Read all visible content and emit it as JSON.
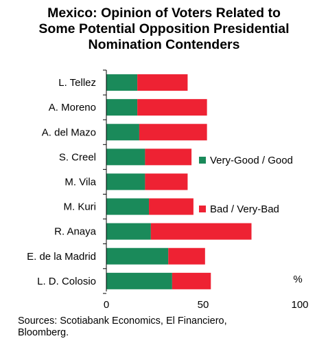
{
  "title_lines": [
    "Mexico: Opinion of Voters Related to",
    "Some Potential Opposition Presidential",
    "Nomination Contenders"
  ],
  "source_lines": [
    "Sources: Scotiabank Economics, El Financiero,",
    "Bloomberg."
  ],
  "chart_data": {
    "type": "bar",
    "orientation": "horizontal",
    "stacked": true,
    "categories": [
      "L. Tellez",
      "A. Moreno",
      "A. del Mazo",
      "S. Creel",
      "M. Vila",
      "M. Kuri",
      "R. Anaya",
      "E. de la Madrid",
      "L. D. Colosio"
    ],
    "series": [
      {
        "name": "Very-Good / Good",
        "color": "#1a8a5a",
        "values": [
          16,
          16,
          17,
          20,
          20,
          22,
          23,
          32,
          34
        ]
      },
      {
        "name": "Bad / Very-Bad",
        "color": "#ee2233",
        "values": [
          26,
          36,
          35,
          24,
          22,
          23,
          52,
          19,
          20
        ]
      }
    ],
    "xlim": [
      0,
      100
    ],
    "xticks": [
      0,
      50,
      100
    ],
    "unit_label": "%",
    "grid": false,
    "legend_position": "inside-right"
  }
}
